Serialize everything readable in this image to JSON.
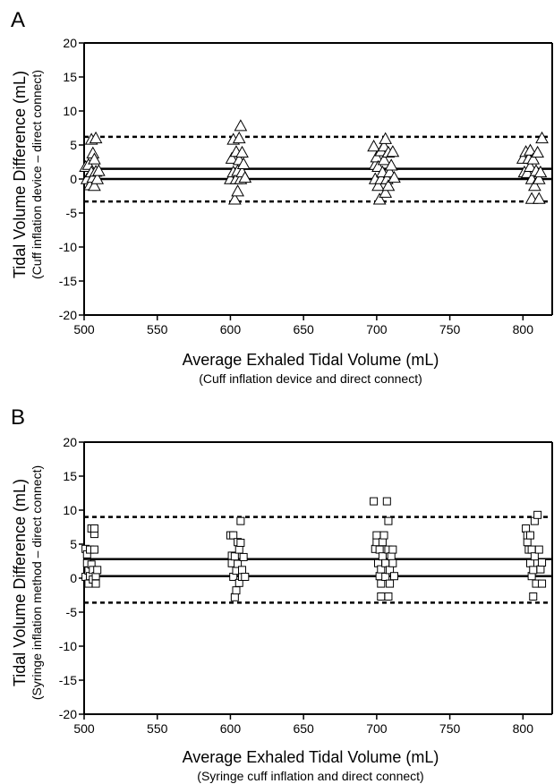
{
  "chart_data": [
    {
      "type": "scatter",
      "panel_label": "A",
      "marker": "triangle",
      "xlabel": "Average Exhaled Tidal Volume (mL)",
      "xlabel_sub": "(Cuff inflation device and direct connect)",
      "ylabel": "Tidal Volume Difference (mL)",
      "ylabel_sub": "(Cuff inflation device – direct connect)",
      "xlim": [
        500,
        820
      ],
      "ylim": [
        -20,
        20
      ],
      "xticks": [
        500,
        550,
        600,
        650,
        700,
        750,
        800
      ],
      "yticks": [
        20,
        15,
        10,
        5,
        0,
        -5,
        -10,
        -15,
        -20
      ],
      "grid": false,
      "reference_lines": [
        {
          "style": "solid",
          "y": 0
        },
        {
          "style": "solid",
          "y": 1.5
        },
        {
          "style": "dashed",
          "y": 6.2
        },
        {
          "style": "dashed",
          "y": -3.3
        }
      ],
      "points": [
        {
          "x": 501,
          "y": 1.8
        },
        {
          "x": 502,
          "y": 0
        },
        {
          "x": 503,
          "y": 2.1
        },
        {
          "x": 504,
          "y": -0.9
        },
        {
          "x": 505,
          "y": 1.0
        },
        {
          "x": 505,
          "y": 5.8
        },
        {
          "x": 506,
          "y": 3.8
        },
        {
          "x": 506,
          "y": 0.2
        },
        {
          "x": 507,
          "y": 2.9
        },
        {
          "x": 507,
          "y": -1.0
        },
        {
          "x": 508,
          "y": 6.0
        },
        {
          "x": 508,
          "y": 1.1
        },
        {
          "x": 509,
          "y": 0
        },
        {
          "x": 510,
          "y": 1.2
        },
        {
          "x": 600,
          "y": 0
        },
        {
          "x": 601,
          "y": 3.0
        },
        {
          "x": 602,
          "y": 5.8
        },
        {
          "x": 602,
          "y": 1.0
        },
        {
          "x": 603,
          "y": -3.0
        },
        {
          "x": 604,
          "y": 4.0
        },
        {
          "x": 604,
          "y": 0
        },
        {
          "x": 605,
          "y": 1.2
        },
        {
          "x": 605,
          "y": -1.8
        },
        {
          "x": 606,
          "y": 2.8
        },
        {
          "x": 606,
          "y": 6.0
        },
        {
          "x": 607,
          "y": 7.8
        },
        {
          "x": 607,
          "y": 0
        },
        {
          "x": 608,
          "y": 3.9
        },
        {
          "x": 608,
          "y": 1.0
        },
        {
          "x": 609,
          "y": 2.2
        },
        {
          "x": 610,
          "y": 0.2
        },
        {
          "x": 698,
          "y": 4.8
        },
        {
          "x": 699,
          "y": 2.1
        },
        {
          "x": 699,
          "y": 0
        },
        {
          "x": 700,
          "y": 3.2
        },
        {
          "x": 701,
          "y": -1.0
        },
        {
          "x": 701,
          "y": 1.8
        },
        {
          "x": 702,
          "y": -3.0
        },
        {
          "x": 703,
          "y": 4.1
        },
        {
          "x": 703,
          "y": 0
        },
        {
          "x": 704,
          "y": 1.0
        },
        {
          "x": 705,
          "y": 4.8
        },
        {
          "x": 705,
          "y": 2.8
        },
        {
          "x": 706,
          "y": -2.0
        },
        {
          "x": 706,
          "y": 5.9
        },
        {
          "x": 707,
          "y": 0
        },
        {
          "x": 708,
          "y": 3.9
        },
        {
          "x": 708,
          "y": -1.0
        },
        {
          "x": 709,
          "y": 1.0
        },
        {
          "x": 710,
          "y": 2.0
        },
        {
          "x": 711,
          "y": 4.0
        },
        {
          "x": 712,
          "y": 0.2
        },
        {
          "x": 800,
          "y": 3.0
        },
        {
          "x": 801,
          "y": 1.0
        },
        {
          "x": 802,
          "y": 4.0
        },
        {
          "x": 803,
          "y": 0.9
        },
        {
          "x": 804,
          "y": 3.0
        },
        {
          "x": 805,
          "y": 4.2
        },
        {
          "x": 805,
          "y": 1.8
        },
        {
          "x": 806,
          "y": -2.9
        },
        {
          "x": 806,
          "y": 0
        },
        {
          "x": 807,
          "y": 2.9
        },
        {
          "x": 808,
          "y": -1.0
        },
        {
          "x": 809,
          "y": 1.2
        },
        {
          "x": 810,
          "y": 3.9
        },
        {
          "x": 811,
          "y": -2.9
        },
        {
          "x": 811,
          "y": 0
        },
        {
          "x": 812,
          "y": 1.0
        },
        {
          "x": 813,
          "y": 6.0
        }
      ]
    },
    {
      "type": "scatter",
      "panel_label": "B",
      "marker": "square",
      "xlabel": "Average Exhaled Tidal Volume (mL)",
      "xlabel_sub": "(Syringe cuff inflation and direct connect)",
      "ylabel": "Tidal Volume Difference (mL)",
      "ylabel_sub": "(Syringe inflation method – direct connect)",
      "xlim": [
        500,
        820
      ],
      "ylim": [
        -20,
        20
      ],
      "xticks": [
        500,
        550,
        600,
        650,
        700,
        750,
        800
      ],
      "yticks": [
        20,
        15,
        10,
        5,
        0,
        -5,
        -10,
        -15,
        -20
      ],
      "grid": false,
      "reference_lines": [
        {
          "style": "solid",
          "y": 0.3
        },
        {
          "style": "solid",
          "y": 2.8
        },
        {
          "style": "dashed",
          "y": 9.0
        },
        {
          "style": "dashed",
          "y": -3.6
        }
      ],
      "points": [
        {
          "x": 501,
          "y": 4.3
        },
        {
          "x": 501,
          "y": 0.2
        },
        {
          "x": 502,
          "y": 2.2
        },
        {
          "x": 502,
          "y": 3.5
        },
        {
          "x": 503,
          "y": 1.1
        },
        {
          "x": 503,
          "y": -0.8
        },
        {
          "x": 504,
          "y": 4.2
        },
        {
          "x": 504,
          "y": 0.3
        },
        {
          "x": 505,
          "y": 7.3
        },
        {
          "x": 505,
          "y": 2.0
        },
        {
          "x": 506,
          "y": 1.2
        },
        {
          "x": 506,
          "y": -0.2
        },
        {
          "x": 507,
          "y": 6.5
        },
        {
          "x": 507,
          "y": 4.2
        },
        {
          "x": 507,
          "y": 7.3
        },
        {
          "x": 508,
          "y": 0.3
        },
        {
          "x": 508,
          "y": -0.8
        },
        {
          "x": 509,
          "y": 1.2
        },
        {
          "x": 600,
          "y": 6.3
        },
        {
          "x": 601,
          "y": 3.3
        },
        {
          "x": 601,
          "y": 2.2
        },
        {
          "x": 602,
          "y": 0.2
        },
        {
          "x": 602,
          "y": 6.3
        },
        {
          "x": 603,
          "y": -2.8
        },
        {
          "x": 603,
          "y": 3.2
        },
        {
          "x": 604,
          "y": 1.1
        },
        {
          "x": 604,
          "y": -1.8
        },
        {
          "x": 605,
          "y": 5.3
        },
        {
          "x": 605,
          "y": 2.1
        },
        {
          "x": 606,
          "y": -0.7
        },
        {
          "x": 606,
          "y": 4.2
        },
        {
          "x": 607,
          "y": 8.4
        },
        {
          "x": 607,
          "y": 5.2
        },
        {
          "x": 608,
          "y": 0.2
        },
        {
          "x": 608,
          "y": 1.2
        },
        {
          "x": 609,
          "y": 3.1
        },
        {
          "x": 610,
          "y": 0.2
        },
        {
          "x": 698,
          "y": 11.3
        },
        {
          "x": 699,
          "y": 4.3
        },
        {
          "x": 700,
          "y": 5.3
        },
        {
          "x": 700,
          "y": 6.3
        },
        {
          "x": 701,
          "y": 2.2
        },
        {
          "x": 702,
          "y": 4.2
        },
        {
          "x": 702,
          "y": 0.3
        },
        {
          "x": 703,
          "y": -0.8
        },
        {
          "x": 703,
          "y": 1.3
        },
        {
          "x": 703,
          "y": -2.7
        },
        {
          "x": 704,
          "y": 3.2
        },
        {
          "x": 704,
          "y": 5.3
        },
        {
          "x": 705,
          "y": 6.3
        },
        {
          "x": 706,
          "y": 2.2
        },
        {
          "x": 706,
          "y": 0.2
        },
        {
          "x": 707,
          "y": 11.3
        },
        {
          "x": 708,
          "y": 4.2
        },
        {
          "x": 708,
          "y": 8.4
        },
        {
          "x": 708,
          "y": -2.7
        },
        {
          "x": 709,
          "y": 1.2
        },
        {
          "x": 709,
          "y": -0.8
        },
        {
          "x": 710,
          "y": 3.2
        },
        {
          "x": 711,
          "y": 2.2
        },
        {
          "x": 711,
          "y": 4.2
        },
        {
          "x": 712,
          "y": 0.3
        },
        {
          "x": 802,
          "y": 7.3
        },
        {
          "x": 803,
          "y": 5.3
        },
        {
          "x": 803,
          "y": 6.3
        },
        {
          "x": 804,
          "y": 4.2
        },
        {
          "x": 805,
          "y": 6.3
        },
        {
          "x": 805,
          "y": 2.2
        },
        {
          "x": 806,
          "y": 4.2
        },
        {
          "x": 806,
          "y": 0.3
        },
        {
          "x": 807,
          "y": 1.2
        },
        {
          "x": 807,
          "y": -2.7
        },
        {
          "x": 808,
          "y": 3.2
        },
        {
          "x": 808,
          "y": 8.4
        },
        {
          "x": 809,
          "y": -0.8
        },
        {
          "x": 810,
          "y": 9.3
        },
        {
          "x": 811,
          "y": 4.2
        },
        {
          "x": 812,
          "y": 1.3
        },
        {
          "x": 813,
          "y": -0.8
        },
        {
          "x": 813,
          "y": 2.3
        }
      ]
    }
  ]
}
